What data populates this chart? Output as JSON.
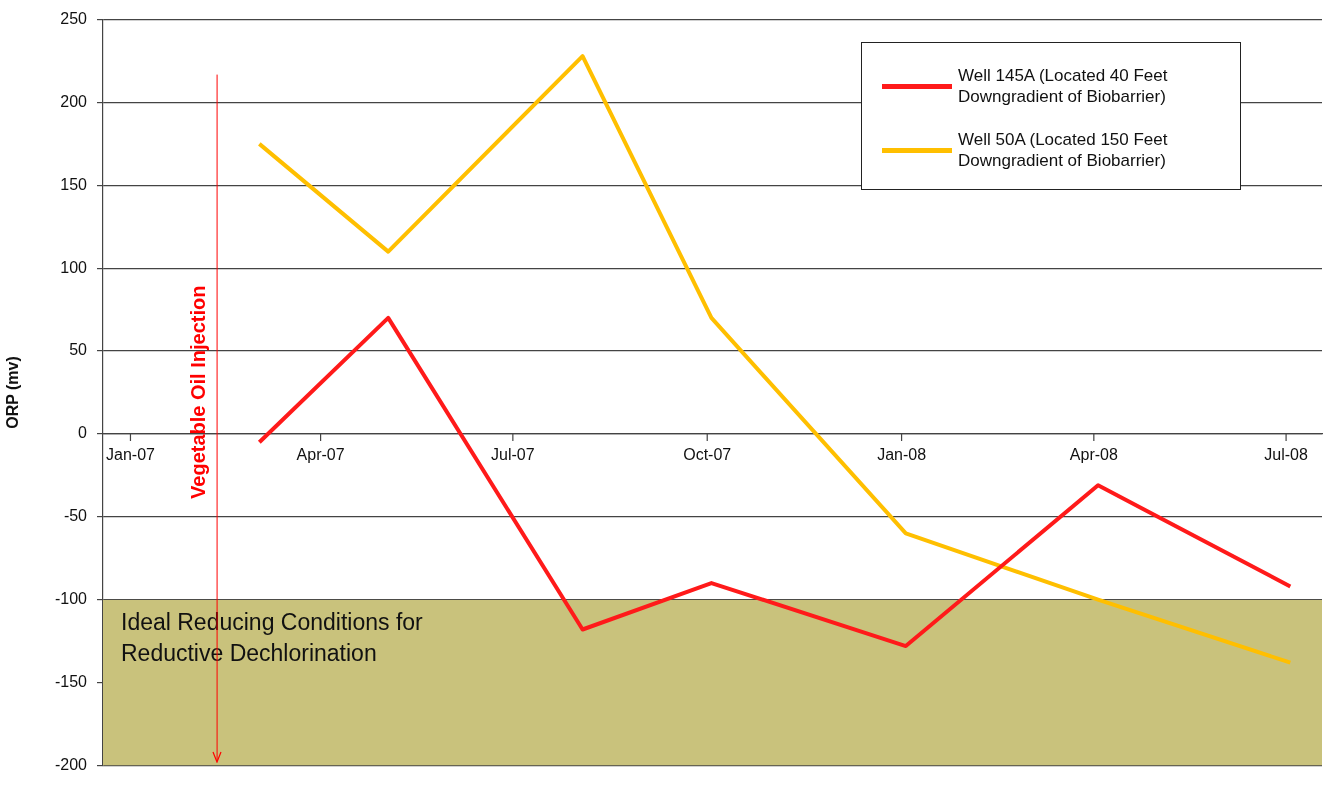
{
  "chart_data": {
    "type": "line",
    "ylabel": "ORP (mv)",
    "x": [
      "2007-03-16",
      "2007-05-16",
      "2007-08-16",
      "2007-10-16",
      "2008-01-16",
      "2008-04-16",
      "2008-07-16"
    ],
    "series": [
      {
        "name": "Well 145A (Located 40 Feet Downgradient of Biobarrier)",
        "color": "#ff1a1a",
        "values": [
          -5,
          70,
          -118,
          -90,
          -128,
          -31,
          -92
        ]
      },
      {
        "name": "Well 50A (Located 150 Feet Downgradient of Biobarrier)",
        "color": "#ffbf00",
        "values": [
          175,
          110,
          228,
          70,
          -60,
          -100,
          -138
        ]
      }
    ],
    "xlim": [
      "2007-01-01",
      "2008-07-31"
    ],
    "xticks": [
      {
        "value": "2007-01-14",
        "label": "Jan-07"
      },
      {
        "value": "2007-04-14",
        "label": "Apr-07"
      },
      {
        "value": "2007-07-14",
        "label": "Jul-07"
      },
      {
        "value": "2007-10-14",
        "label": "Oct-07"
      },
      {
        "value": "2008-01-14",
        "label": "Jan-08"
      },
      {
        "value": "2008-04-14",
        "label": "Apr-08"
      },
      {
        "value": "2008-07-14",
        "label": "Jul-08"
      }
    ],
    "ylim": [
      -200,
      250
    ],
    "yticks": [
      -200,
      -150,
      -100,
      -50,
      0,
      50,
      100,
      150,
      200,
      250
    ],
    "grid": "y",
    "legend": "top right",
    "marker": "none",
    "line_style": "solid",
    "ref_lines": [
      {
        "axis": "x",
        "value": "2007-02-24",
        "label": "Vegetable Oil Injection",
        "color": "#ff0000"
      }
    ],
    "bands": [
      {
        "axis": "y",
        "from": -200,
        "to": -100,
        "label": "Ideal Reducing Conditions for Reductive Dechlorination",
        "color": "#c9c27c"
      }
    ]
  }
}
